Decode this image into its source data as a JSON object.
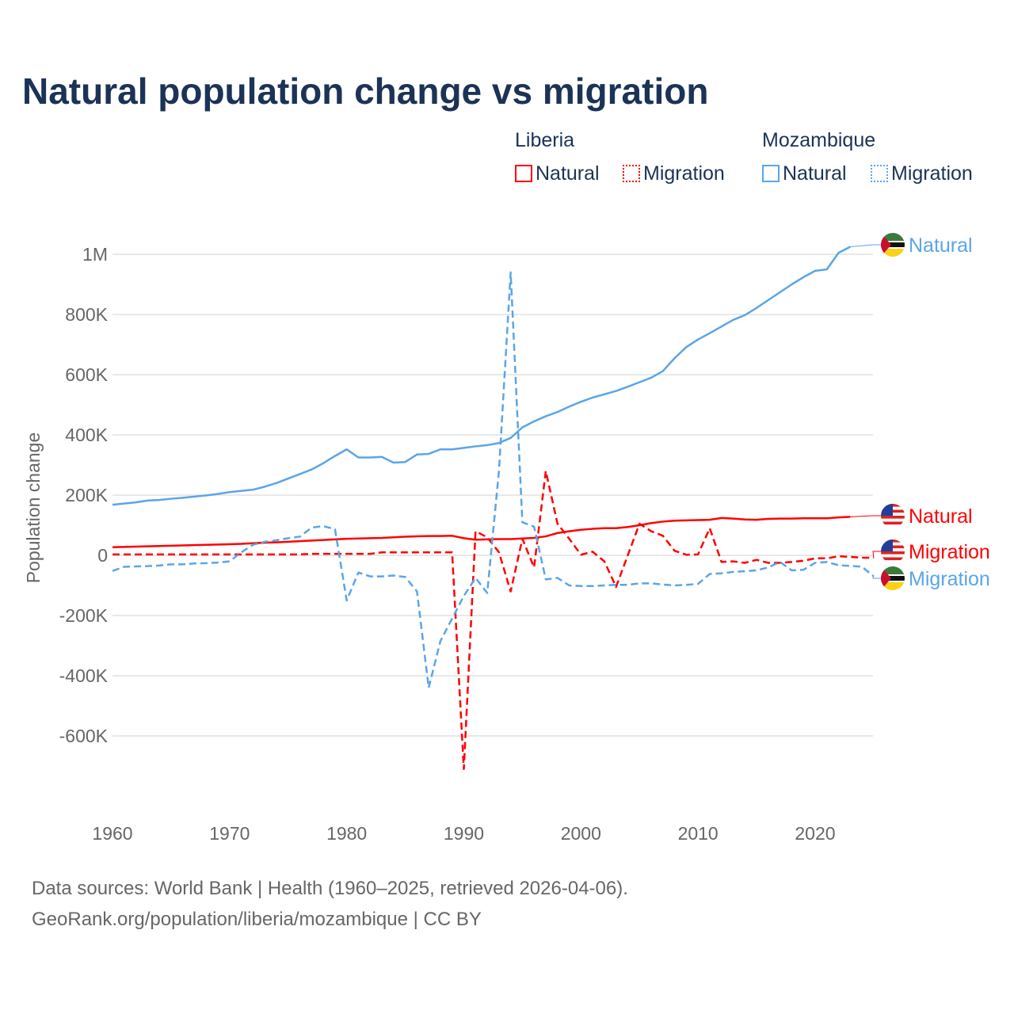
{
  "title": "Natural population change vs migration",
  "legend": {
    "groups": [
      {
        "name": "Liberia",
        "items": [
          "Natural",
          "Migration"
        ],
        "color": "#ff0000"
      },
      {
        "name": "Mozambique",
        "items": [
          "Natural",
          "Migration"
        ],
        "color": "#5aa5e8"
      }
    ]
  },
  "footer": {
    "line1": "Data sources: World Bank | Health (1960–2025, retrieved 2026-04-06).",
    "line2": "GeoRank.org/population/liberia/mozambique | CC BY"
  },
  "chart_data": {
    "type": "line",
    "title": "Natural population change vs migration",
    "xlabel": "",
    "ylabel": "Population change",
    "xlim": [
      1960,
      2025
    ],
    "ylim": [
      -800000,
      1100000
    ],
    "xticks": [
      1960,
      1970,
      1980,
      1990,
      2000,
      2010,
      2020
    ],
    "yticks": [
      {
        "v": 1000000,
        "l": "1M"
      },
      {
        "v": 800000,
        "l": "800K"
      },
      {
        "v": 600000,
        "l": "600K"
      },
      {
        "v": 400000,
        "l": "400K"
      },
      {
        "v": 200000,
        "l": "200K"
      },
      {
        "v": 0,
        "l": "0"
      },
      {
        "v": -200000,
        "l": "-200K"
      },
      {
        "v": -400000,
        "l": "-400K"
      },
      {
        "v": -600000,
        "l": "-600K"
      }
    ],
    "x_start": 1960,
    "units": "thousands",
    "series": [
      {
        "name": "Mozambique Natural",
        "label": "Natural",
        "color": "#5aa5e8",
        "dash": false,
        "values": [
          168,
          172,
          176,
          182,
          184,
          188,
          191,
          195,
          199,
          204,
          210,
          214,
          218,
          228,
          240,
          255,
          270,
          285,
          306,
          330,
          352,
          325,
          325,
          327,
          308,
          310,
          335,
          337,
          352,
          352,
          357,
          362,
          366,
          373,
          390,
          425,
          445,
          462,
          476,
          494,
          510,
          524,
          535,
          546,
          560,
          575,
          590,
          612,
          655,
          692,
          717,
          738,
          760,
          782,
          798,
          822,
          848,
          874,
          900,
          924,
          945,
          950,
          1005,
          1025
        ]
      },
      {
        "name": "Liberia Natural",
        "label": "Natural",
        "color": "#ff0000",
        "dash": false,
        "values": [
          27,
          28,
          29,
          30,
          31,
          32,
          33,
          34,
          35,
          36,
          37,
          38,
          40,
          42,
          43,
          45,
          47,
          49,
          51,
          53,
          55,
          56,
          57,
          58,
          60,
          62,
          63,
          64,
          64,
          65,
          57,
          52,
          53,
          54,
          54,
          56,
          58,
          63,
          74,
          80,
          85,
          88,
          90,
          90,
          94,
          100,
          107,
          112,
          115,
          116,
          117,
          118,
          124,
          122,
          119,
          118,
          121,
          122,
          122,
          123,
          123,
          123,
          126,
          128
        ]
      },
      {
        "name": "Liberia Migration",
        "label": "Migration",
        "color": "#ff0000",
        "dash": true,
        "values": [
          3,
          3,
          3,
          3,
          3,
          3,
          3,
          3,
          3,
          3,
          3,
          3,
          3,
          3,
          3,
          3,
          3,
          5,
          5,
          5,
          5,
          5,
          5,
          10,
          10,
          10,
          10,
          10,
          10,
          10,
          -710,
          80,
          60,
          10,
          -120,
          55,
          -40,
          280,
          105,
          55,
          2,
          12,
          -20,
          -105,
          0,
          105,
          80,
          65,
          15,
          2,
          3,
          90,
          -22,
          -20,
          -25,
          -15,
          -25,
          -25,
          -22,
          -18,
          -10,
          -10,
          -3,
          -5,
          -8,
          -8
        ]
      },
      {
        "name": "Mozambique Migration",
        "label": "Migration",
        "color": "#5aa5e8",
        "dash": true,
        "values": [
          -52,
          -38,
          -37,
          -36,
          -34,
          -30,
          -30,
          -27,
          -26,
          -24,
          -20,
          10,
          35,
          45,
          50,
          57,
          62,
          92,
          97,
          87,
          -150,
          -57,
          -70,
          -70,
          -67,
          -72,
          -120,
          -440,
          -285,
          -210,
          -135,
          -75,
          -125,
          280,
          940,
          110,
          95,
          -80,
          -75,
          -100,
          -102,
          -102,
          -100,
          -98,
          -98,
          -93,
          -93,
          -97,
          -100,
          -98,
          -95,
          -62,
          -60,
          -55,
          -53,
          -50,
          -40,
          -22,
          -50,
          -48,
          -25,
          -22,
          -33,
          -35,
          -38,
          -70
        ]
      }
    ]
  }
}
